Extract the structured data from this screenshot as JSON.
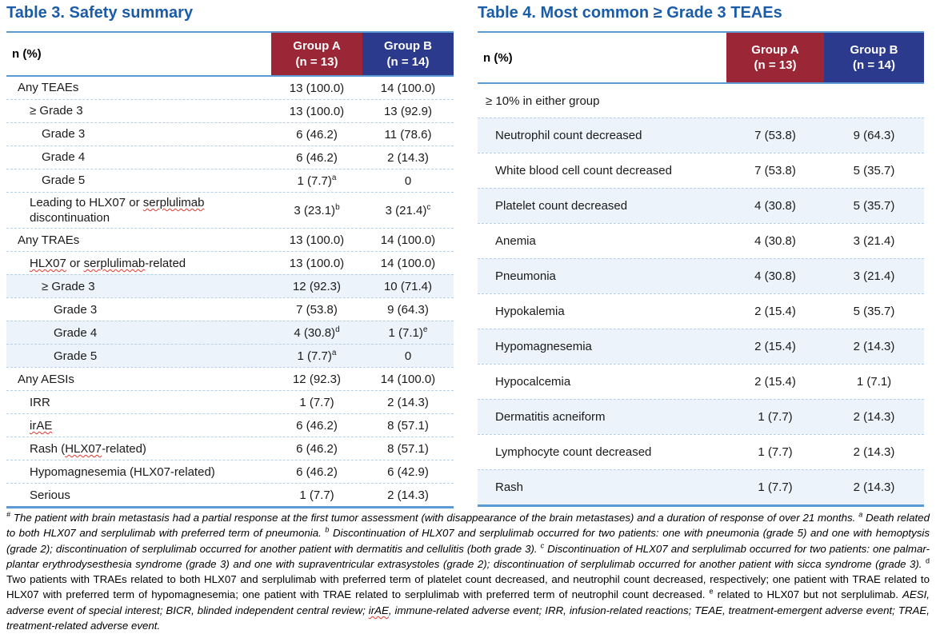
{
  "colors": {
    "title_blue": "#1A5CA8",
    "group_a_maroon": "#9A2636",
    "group_b_navy": "#2B3A8C",
    "table_border_blue": "#5B9BD5",
    "row_separator_blue": "#B3D1EC",
    "row_tint": "#EDF3FA",
    "squiggle_red": "#E0362C"
  },
  "table3": {
    "title": "Table 3. Safety summary",
    "col_header": "n (%)",
    "groups": [
      {
        "name": "Group A",
        "n": "(n = 13)"
      },
      {
        "name": "Group B",
        "n": "(n = 14)"
      }
    ],
    "rows": [
      {
        "label": "Any TEAEs",
        "indent": 0,
        "a": "13 (100.0)",
        "b": "14 (100.0)"
      },
      {
        "label": "≥ Grade 3",
        "indent": 1,
        "a": "13 (100.0)",
        "b": "13 (92.9)"
      },
      {
        "label": "Grade 3",
        "indent": 2,
        "a": "6 (46.2)",
        "b": "11 (78.6)"
      },
      {
        "label": "Grade 4",
        "indent": 2,
        "a": "6 (46.2)",
        "b": "2 (14.3)"
      },
      {
        "label": "Grade 5",
        "indent": 2,
        "a": "1 (7.7)^a",
        "b": "0"
      },
      {
        "label": "Leading to HLX07 or serplulimab discontinuation",
        "indent": 1,
        "a": "3 (23.1)^b",
        "b": "3 (21.4)^c",
        "sq": [
          "serplulimab"
        ]
      },
      {
        "label": "Any TRAEs",
        "indent": 0,
        "a": "13 (100.0)",
        "b": "14 (100.0)"
      },
      {
        "label": "HLX07 or serplulimab-related",
        "indent": 1,
        "a": "13 (100.0)",
        "b": "14 (100.0)",
        "sq": [
          "HLX07",
          "serplulimab"
        ]
      },
      {
        "label": "≥ Grade 3",
        "indent": 2,
        "a": "12 (92.3)",
        "b": "10 (71.4)",
        "tint": true
      },
      {
        "label": "Grade 3",
        "indent": 3,
        "a": "7 (53.8)",
        "b": "9 (64.3)"
      },
      {
        "label": "Grade 4",
        "indent": 3,
        "a": "4 (30.8)^d",
        "b": "1 (7.1)^e",
        "tint": true
      },
      {
        "label": "Grade 5",
        "indent": 3,
        "a": "1 (7.7)^a",
        "b": "0",
        "tint": true
      },
      {
        "label": "Any AESIs",
        "indent": 0,
        "a": "12 (92.3)",
        "b": "14 (100.0)"
      },
      {
        "label": "IRR",
        "indent": 1,
        "a": "1 (7.7)",
        "b": "2 (14.3)"
      },
      {
        "label": "irAE",
        "indent": 1,
        "a": "6 (46.2)",
        "b": "8 (57.1)",
        "sq": [
          "irAE"
        ]
      },
      {
        "label": "Rash (HLX07-related)",
        "indent": 1,
        "a": "6 (46.2)",
        "b": "8 (57.1)",
        "sq": [
          "HLX07"
        ]
      },
      {
        "label": "Hypomagnesemia (HLX07-related)",
        "indent": 1,
        "a": "6 (46.2)",
        "b": "6 (42.9)"
      },
      {
        "label": "Serious",
        "indent": 1,
        "a": "1 (7.7)",
        "b": "2 (14.3)"
      }
    ]
  },
  "table4": {
    "title": "Table 4. Most common ≥ Grade 3 TEAEs",
    "col_header": "n (%)",
    "groups": [
      {
        "name": "Group A",
        "n": "(n = 13)"
      },
      {
        "name": "Group B",
        "n": "(n = 14)"
      }
    ],
    "subheader": "≥ 10% in either group",
    "rows": [
      {
        "label": "Neutrophil count decreased",
        "a": "7 (53.8)",
        "b": "9 (64.3)",
        "tint": true
      },
      {
        "label": "White blood cell count decreased",
        "a": "7 (53.8)",
        "b": "5 (35.7)"
      },
      {
        "label": "Platelet count decreased",
        "a": "4 (30.8)",
        "b": "5 (35.7)",
        "tint": true
      },
      {
        "label": "Anemia",
        "a": "4 (30.8)",
        "b": "3 (21.4)"
      },
      {
        "label": "Pneumonia",
        "a": "4 (30.8)",
        "b": "3 (21.4)",
        "tint": true
      },
      {
        "label": "Hypokalemia",
        "a": "2 (15.4)",
        "b": "5 (35.7)"
      },
      {
        "label": "Hypomagnesemia",
        "a": "2 (15.4)",
        "b": "2 (14.3)",
        "tint": true
      },
      {
        "label": "Hypocalcemia",
        "a": "2 (15.4)",
        "b": "1 (7.1)"
      },
      {
        "label": "Dermatitis acneiform",
        "a": "1 (7.7)",
        "b": "2 (14.3)",
        "tint": true
      },
      {
        "label": "Lymphocyte count decreased",
        "a": "1 (7.7)",
        "b": "2 (14.3)"
      },
      {
        "label": "Rash",
        "a": "1 (7.7)",
        "b": "2 (14.3)",
        "tint": true
      }
    ]
  },
  "footnote": {
    "segments": [
      {
        "t": "#",
        "sup": true,
        "it": true
      },
      {
        "t": " The patient with brain metastasis had a partial response at the first tumor assessment (with disappearance of the brain metastases) and a duration of response of over 21 months. ",
        "it": true
      },
      {
        "t": "a",
        "sup": true,
        "it": true
      },
      {
        "t": " Death related to both HLX07 and serplulimab with preferred term of pneumonia. ",
        "it": true
      },
      {
        "t": "b",
        "sup": true,
        "it": true
      },
      {
        "t": " Discontinuation of HLX07 and serplulimab occurred for two patients: one with pneumonia (grade 5) and one with hemoptysis (grade 2); discontinuation of serplulimab occurred for another patient with dermatitis and cellulitis (both grade 3). ",
        "it": true
      },
      {
        "t": "c",
        "sup": true,
        "it": true
      },
      {
        "t": " Discontinuation of HLX07 and serplulimab occurred for two patients: one palmar-plantar erythrodysesthesia syndrome (grade 3) and one with supraventricular extrasystoles (grade 2); discontinuation of serplulimab occurred for another patient with sicca syndrome (grade 3). ",
        "it": true
      },
      {
        "t": "d",
        "sup": true
      },
      {
        "t": " Two patients with TRAEs related to both HLX07 and serplulimab with preferred term of platelet count decreased, and neutrophil count decreased, respectively; one patient with TRAE related to HLX07 with preferred term of hypomagnesemia; one patient with TRAE related to serplulimab with preferred term of neutrophil count decreased. "
      },
      {
        "t": "e",
        "sup": true
      },
      {
        "t": " related to HLX07 but not serplulimab. "
      },
      {
        "t": "AESI, adverse event of special interest; BICR, blinded independent central review; ",
        "it": true
      },
      {
        "t": "irAE",
        "it": true,
        "sq": true
      },
      {
        "t": ", immune-related adverse event; IRR, infusion-related reactions; TEAE, treatment-emergent adverse event; TRAE, treatment-related adverse event.",
        "it": true
      }
    ]
  }
}
